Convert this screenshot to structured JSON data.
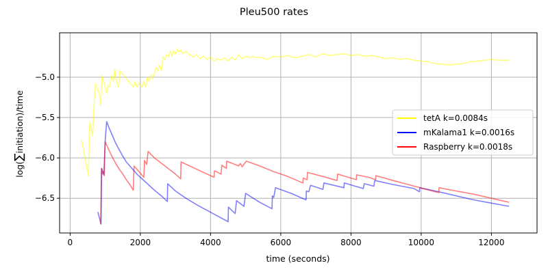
{
  "chart_data": {
    "type": "line",
    "title": "Pleu500 rates",
    "xlabel": "time (seconds)",
    "ylabel_prefix": "log(",
    "ylabel_symbol": "∑",
    "ylabel_suffix": "initiation)/time",
    "xlim": [
      -300,
      13300
    ],
    "ylim": [
      -6.93,
      -4.45
    ],
    "x_ticks": [
      0,
      2000,
      4000,
      6000,
      8000,
      10000,
      12000
    ],
    "x_tick_labels": [
      "0",
      "2000",
      "4000",
      "6000",
      "8000",
      "10000",
      "12000"
    ],
    "y_ticks": [
      -6.5,
      -6.0,
      -5.5,
      -5.0
    ],
    "y_tick_labels": [
      "−6.5",
      "−6.0",
      "−5.5",
      "−5.0"
    ],
    "grid": true,
    "legend_position": "right",
    "series": [
      {
        "name": "tetA k=0.0084s",
        "color": "#ffff00",
        "points": [
          [
            330,
            -5.78
          ],
          [
            520,
            -6.22
          ],
          [
            560,
            -5.55
          ],
          [
            640,
            -5.73
          ],
          [
            680,
            -5.35
          ],
          [
            720,
            -5.08
          ],
          [
            780,
            -5.15
          ],
          [
            830,
            -5.2
          ],
          [
            870,
            -5.35
          ],
          [
            910,
            -4.98
          ],
          [
            960,
            -5.05
          ],
          [
            1000,
            -5.13
          ],
          [
            1040,
            -5.2
          ],
          [
            1080,
            -5.1
          ],
          [
            1120,
            -5.12
          ],
          [
            1180,
            -4.98
          ],
          [
            1230,
            -5.05
          ],
          [
            1270,
            -4.9
          ],
          [
            1320,
            -5.05
          ],
          [
            1380,
            -5.13
          ],
          [
            1420,
            -4.92
          ],
          [
            1470,
            -4.95
          ],
          [
            1520,
            -4.97
          ],
          [
            1600,
            -5.02
          ],
          [
            1700,
            -5.07
          ],
          [
            1800,
            -5.12
          ],
          [
            1850,
            -5.05
          ],
          [
            1900,
            -5.13
          ],
          [
            1950,
            -5.08
          ],
          [
            2000,
            -5.1
          ],
          [
            2050,
            -5.12
          ],
          [
            2100,
            -5.05
          ],
          [
            2150,
            -5.12
          ],
          [
            2200,
            -5.0
          ],
          [
            2250,
            -5.05
          ],
          [
            2300,
            -4.97
          ],
          [
            2350,
            -5.02
          ],
          [
            2400,
            -4.95
          ],
          [
            2450,
            -4.88
          ],
          [
            2500,
            -4.92
          ],
          [
            2550,
            -4.85
          ],
          [
            2600,
            -4.92
          ],
          [
            2650,
            -4.75
          ],
          [
            2700,
            -4.78
          ],
          [
            2750,
            -4.72
          ],
          [
            2800,
            -4.75
          ],
          [
            2850,
            -4.68
          ],
          [
            2900,
            -4.74
          ],
          [
            2950,
            -4.67
          ],
          [
            3000,
            -4.72
          ],
          [
            3050,
            -4.65
          ],
          [
            3100,
            -4.69
          ],
          [
            3150,
            -4.66
          ],
          [
            3200,
            -4.71
          ],
          [
            3300,
            -4.68
          ],
          [
            3400,
            -4.72
          ],
          [
            3500,
            -4.75
          ],
          [
            3600,
            -4.72
          ],
          [
            3700,
            -4.77
          ],
          [
            3800,
            -4.74
          ],
          [
            3900,
            -4.78
          ],
          [
            4000,
            -4.75
          ],
          [
            4100,
            -4.8
          ],
          [
            4200,
            -4.77
          ],
          [
            4300,
            -4.79
          ],
          [
            4400,
            -4.76
          ],
          [
            4500,
            -4.8
          ],
          [
            4600,
            -4.75
          ],
          [
            4700,
            -4.79
          ],
          [
            4800,
            -4.72
          ],
          [
            4900,
            -4.77
          ],
          [
            5000,
            -4.74
          ],
          [
            5100,
            -4.76
          ],
          [
            5200,
            -4.74
          ],
          [
            5300,
            -4.76
          ],
          [
            5400,
            -4.75
          ],
          [
            5600,
            -4.78
          ],
          [
            5800,
            -4.74
          ],
          [
            6000,
            -4.75
          ],
          [
            6200,
            -4.73
          ],
          [
            6400,
            -4.76
          ],
          [
            6600,
            -4.74
          ],
          [
            6800,
            -4.72
          ],
          [
            7000,
            -4.75
          ],
          [
            7200,
            -4.71
          ],
          [
            7400,
            -4.73
          ],
          [
            7600,
            -4.72
          ],
          [
            7800,
            -4.71
          ],
          [
            8000,
            -4.73
          ],
          [
            8200,
            -4.72
          ],
          [
            8400,
            -4.74
          ],
          [
            8600,
            -4.73
          ],
          [
            8800,
            -4.75
          ],
          [
            9000,
            -4.77
          ],
          [
            9200,
            -4.76
          ],
          [
            9400,
            -4.78
          ],
          [
            9600,
            -4.77
          ],
          [
            9800,
            -4.79
          ],
          [
            10000,
            -4.8
          ],
          [
            10200,
            -4.81
          ],
          [
            10400,
            -4.83
          ],
          [
            10600,
            -4.84
          ],
          [
            10800,
            -4.85
          ],
          [
            11000,
            -4.84
          ],
          [
            11200,
            -4.83
          ],
          [
            11400,
            -4.81
          ],
          [
            11600,
            -4.8
          ],
          [
            11800,
            -4.79
          ],
          [
            12000,
            -4.78
          ],
          [
            12200,
            -4.79
          ],
          [
            12500,
            -4.79
          ]
        ]
      },
      {
        "name": "mKalama1 k=0.0016s",
        "color": "#0000ff",
        "points": [
          [
            790,
            -6.67
          ],
          [
            880,
            -6.82
          ],
          [
            900,
            -6.13
          ],
          [
            960,
            -6.21
          ],
          [
            1000,
            -5.78
          ],
          [
            1040,
            -5.55
          ],
          [
            1100,
            -5.62
          ],
          [
            1200,
            -5.72
          ],
          [
            1300,
            -5.82
          ],
          [
            1400,
            -5.9
          ],
          [
            1500,
            -5.98
          ],
          [
            1600,
            -6.05
          ],
          [
            1700,
            -6.1
          ],
          [
            1800,
            -6.15
          ],
          [
            1900,
            -6.2
          ],
          [
            2000,
            -6.24
          ],
          [
            2200,
            -6.32
          ],
          [
            2400,
            -6.4
          ],
          [
            2600,
            -6.47
          ],
          [
            2770,
            -6.54
          ],
          [
            2780,
            -6.32
          ],
          [
            3000,
            -6.41
          ],
          [
            3300,
            -6.5
          ],
          [
            3600,
            -6.58
          ],
          [
            3900,
            -6.65
          ],
          [
            4200,
            -6.72
          ],
          [
            4500,
            -6.79
          ],
          [
            4510,
            -6.61
          ],
          [
            4700,
            -6.69
          ],
          [
            4740,
            -6.53
          ],
          [
            4950,
            -6.6
          ],
          [
            5000,
            -6.44
          ],
          [
            5400,
            -6.55
          ],
          [
            5750,
            -6.63
          ],
          [
            5760,
            -6.47
          ],
          [
            5800,
            -6.49
          ],
          [
            5850,
            -6.37
          ],
          [
            6300,
            -6.44
          ],
          [
            6720,
            -6.52
          ],
          [
            6730,
            -6.41
          ],
          [
            6800,
            -6.42
          ],
          [
            6850,
            -6.34
          ],
          [
            7200,
            -6.39
          ],
          [
            7230,
            -6.31
          ],
          [
            7800,
            -6.37
          ],
          [
            7810,
            -6.31
          ],
          [
            8350,
            -6.38
          ],
          [
            8380,
            -6.32
          ],
          [
            8650,
            -6.35
          ],
          [
            8680,
            -6.28
          ],
          [
            9200,
            -6.33
          ],
          [
            9800,
            -6.38
          ],
          [
            9950,
            -6.42
          ],
          [
            9960,
            -6.37
          ],
          [
            10500,
            -6.42
          ],
          [
            11000,
            -6.47
          ],
          [
            11500,
            -6.52
          ],
          [
            12000,
            -6.56
          ],
          [
            12500,
            -6.6
          ]
        ]
      },
      {
        "name": "Raspberry k=0.0018s",
        "color": "#ff0000",
        "points": [
          [
            870,
            -6.82
          ],
          [
            890,
            -6.13
          ],
          [
            920,
            -6.2
          ],
          [
            950,
            -6.17
          ],
          [
            975,
            -6.22
          ],
          [
            990,
            -5.9
          ],
          [
            1000,
            -5.8
          ],
          [
            1050,
            -5.85
          ],
          [
            1100,
            -5.9
          ],
          [
            1200,
            -5.99
          ],
          [
            1300,
            -6.07
          ],
          [
            1400,
            -6.14
          ],
          [
            1500,
            -6.2
          ],
          [
            1600,
            -6.27
          ],
          [
            1700,
            -6.33
          ],
          [
            1800,
            -6.4
          ],
          [
            1820,
            -6.1
          ],
          [
            2000,
            -6.19
          ],
          [
            2100,
            -6.24
          ],
          [
            2120,
            -6.03
          ],
          [
            2180,
            -6.08
          ],
          [
            2220,
            -5.92
          ],
          [
            2400,
            -6.0
          ],
          [
            2700,
            -6.1
          ],
          [
            3000,
            -6.2
          ],
          [
            3150,
            -6.26
          ],
          [
            3160,
            -6.05
          ],
          [
            3500,
            -6.12
          ],
          [
            3800,
            -6.18
          ],
          [
            4100,
            -6.24
          ],
          [
            4110,
            -6.16
          ],
          [
            4300,
            -6.2
          ],
          [
            4320,
            -6.09
          ],
          [
            4450,
            -6.13
          ],
          [
            4460,
            -6.04
          ],
          [
            4800,
            -6.1
          ],
          [
            4850,
            -6.07
          ],
          [
            4900,
            -6.11
          ],
          [
            5020,
            -6.04
          ],
          [
            5400,
            -6.1
          ],
          [
            5800,
            -6.17
          ],
          [
            6200,
            -6.23
          ],
          [
            6630,
            -6.31
          ],
          [
            6640,
            -6.25
          ],
          [
            6750,
            -6.27
          ],
          [
            6760,
            -6.18
          ],
          [
            7200,
            -6.23
          ],
          [
            7600,
            -6.28
          ],
          [
            7620,
            -6.2
          ],
          [
            8000,
            -6.25
          ],
          [
            8150,
            -6.27
          ],
          [
            8160,
            -6.21
          ],
          [
            8500,
            -6.24
          ],
          [
            8700,
            -6.27
          ],
          [
            8710,
            -6.22
          ],
          [
            9200,
            -6.28
          ],
          [
            9800,
            -6.35
          ],
          [
            10400,
            -6.42
          ],
          [
            10500,
            -6.43
          ],
          [
            10510,
            -6.37
          ],
          [
            11000,
            -6.41
          ],
          [
            11500,
            -6.45
          ],
          [
            12000,
            -6.5
          ],
          [
            12500,
            -6.55
          ]
        ]
      }
    ]
  }
}
